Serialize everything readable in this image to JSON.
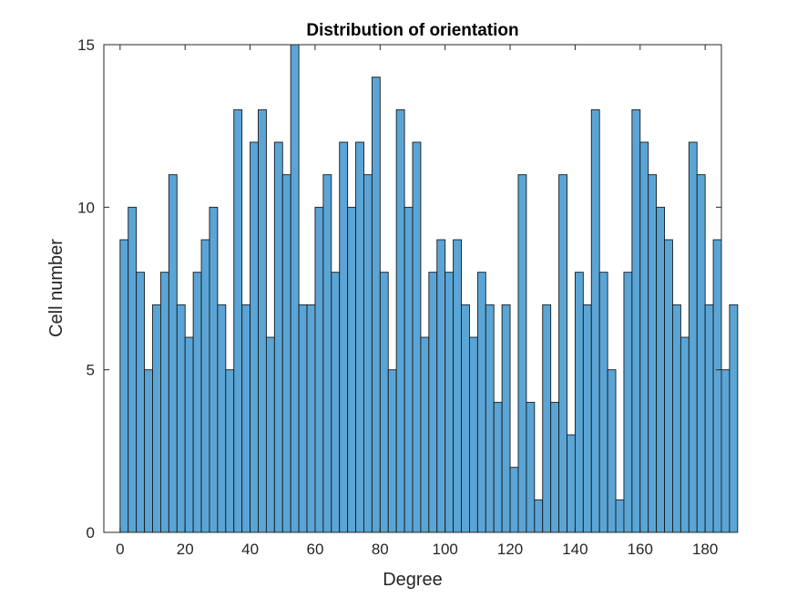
{
  "chart_data": {
    "type": "bar",
    "title": "Distribution of orientation",
    "xlabel": "Degree",
    "ylabel": "Cell number",
    "xlim": [
      -5,
      185
    ],
    "ylim": [
      0,
      15
    ],
    "xticks": [
      0,
      20,
      40,
      60,
      80,
      100,
      120,
      140,
      160,
      180
    ],
    "yticks": [
      0,
      5,
      10,
      15
    ],
    "bin_width": 2.5,
    "bin_start": 0,
    "values": [
      9,
      10,
      8,
      5,
      7,
      8,
      11,
      7,
      6,
      8,
      9,
      10,
      7,
      5,
      13,
      7,
      12,
      13,
      6,
      12,
      11,
      15,
      7,
      7,
      10,
      11,
      8,
      12,
      10,
      12,
      11,
      14,
      8,
      5,
      13,
      10,
      12,
      6,
      8,
      9,
      8,
      9,
      7,
      6,
      8,
      7,
      4,
      7,
      2,
      11,
      4,
      1,
      7,
      4,
      11,
      3,
      8,
      7,
      13,
      8,
      5,
      1,
      8,
      13,
      12,
      11,
      10,
      9,
      7,
      6,
      12,
      11,
      7,
      9,
      5,
      7
    ],
    "bar_color": "#5aa5d6",
    "edge_color": "#1a1a1a",
    "grid": false,
    "legend": "none"
  }
}
